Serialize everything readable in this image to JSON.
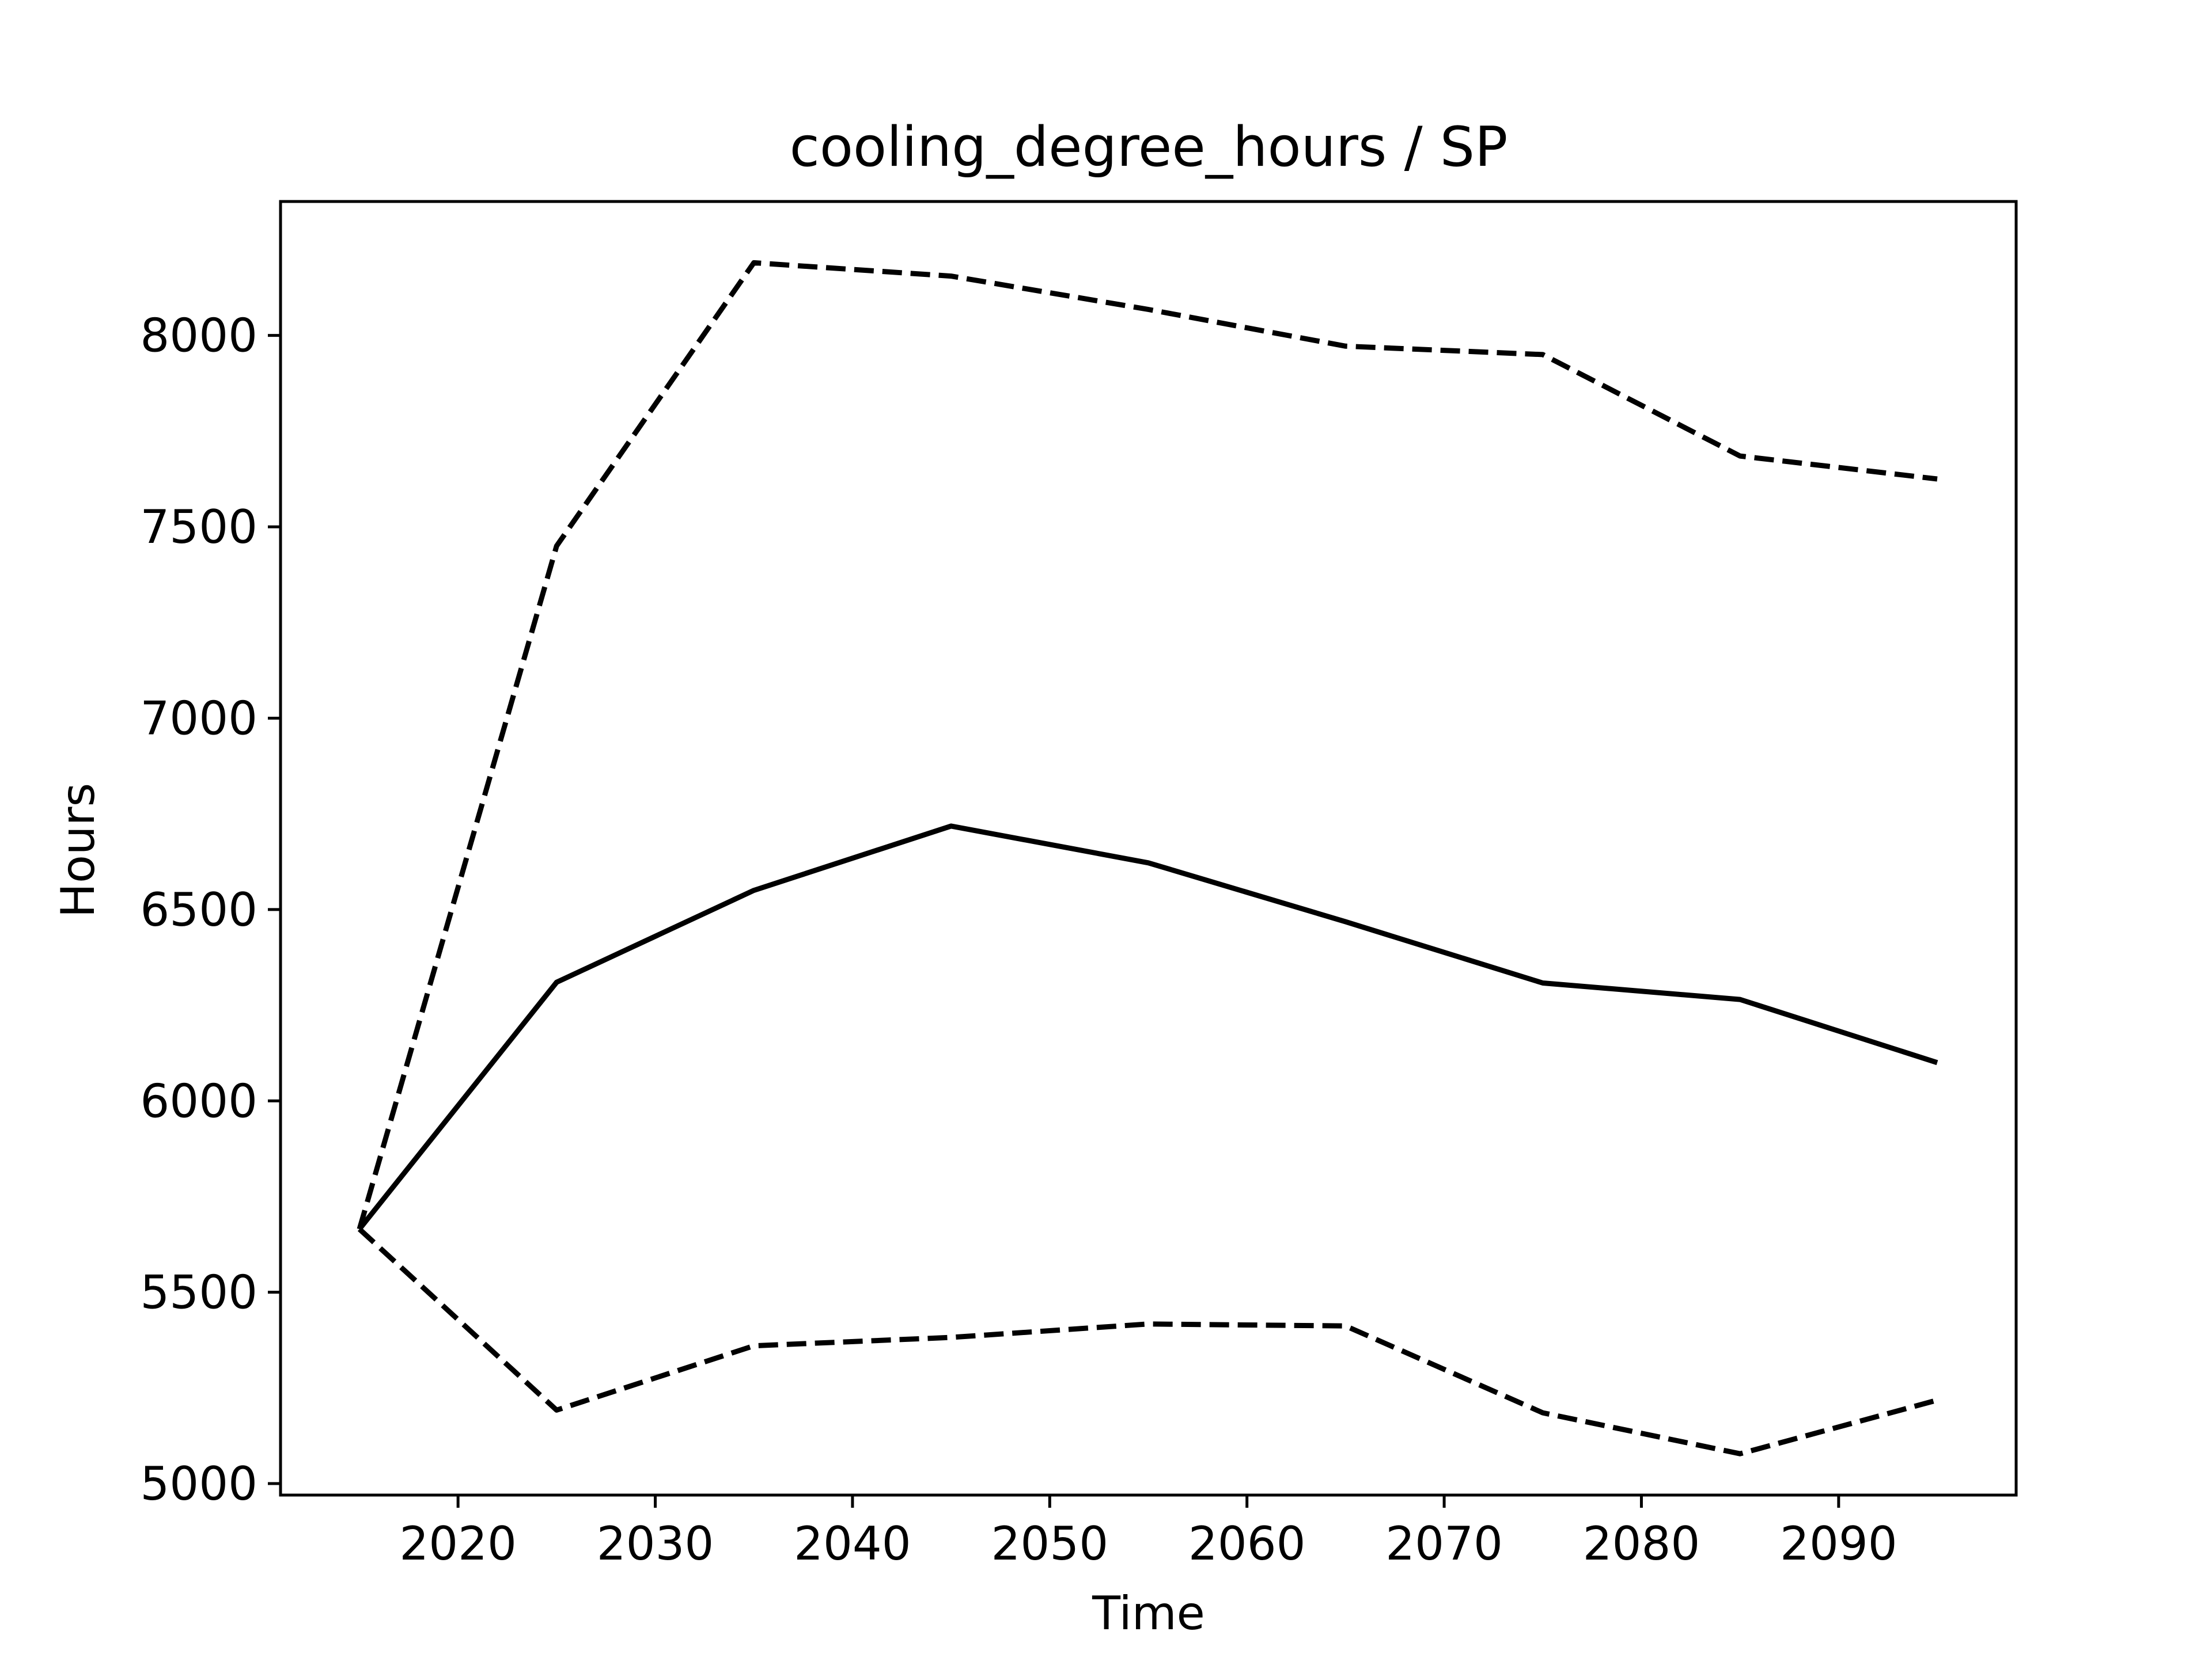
{
  "chart_data": {
    "type": "line",
    "title": "cooling_degree_hours / SP",
    "xlabel": "Time",
    "ylabel": "Hours",
    "xlim": [
      2011,
      2099
    ],
    "ylim": [
      4970,
      8350
    ],
    "x_ticks": [
      2020,
      2030,
      2040,
      2050,
      2060,
      2070,
      2080,
      2090
    ],
    "y_ticks": [
      5000,
      5500,
      6000,
      6500,
      7000,
      7500,
      8000
    ],
    "grid": false,
    "legend": "none",
    "x": [
      2015,
      2025,
      2035,
      2045,
      2055,
      2065,
      2075,
      2085,
      2095
    ],
    "series": [
      {
        "style": "solid",
        "color": "#000000",
        "values": [
          5665,
          6310,
          6550,
          6718,
          6622,
          6468,
          6308,
          6265,
          6100
        ]
      },
      {
        "style": "dashed",
        "color": "#000000",
        "values": [
          5665,
          7450,
          8190,
          8155,
          8068,
          7972,
          7950,
          7685,
          7625
        ]
      },
      {
        "style": "dashed",
        "color": "#000000",
        "values": [
          5665,
          5192,
          5360,
          5382,
          5417,
          5412,
          5185,
          5078,
          5218
        ]
      }
    ]
  }
}
